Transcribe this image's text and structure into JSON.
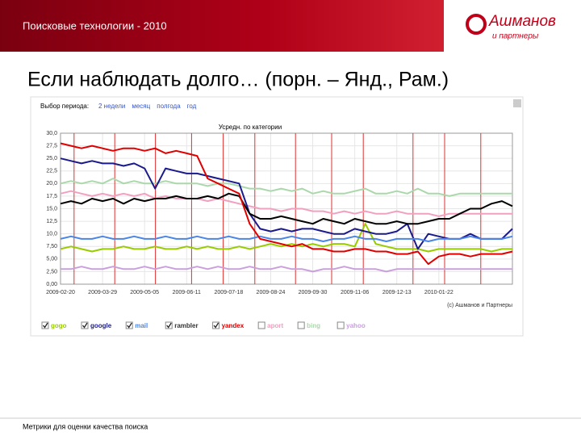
{
  "header": {
    "title": "Поисковые технологии - 2010",
    "logo_name": "Ашманов",
    "logo_sub": "и партнеры"
  },
  "slide": {
    "title": "Если наблюдать долго… (порн. – Янд., Рам.)"
  },
  "footer": "Метрики для оценки качества поиска",
  "chart_data": {
    "type": "line",
    "title": "Усредн. по категории",
    "period_label": "Выбор периода:",
    "period_options": [
      "2 недели",
      "месяц",
      "полгода",
      "год"
    ],
    "credit": "(c) Ашманов и Партнеры",
    "categories": [
      "2009-02-20",
      null,
      null,
      null,
      "2009-03-29",
      null,
      null,
      null,
      "2009-05-05",
      null,
      null,
      null,
      "2009-06-11",
      null,
      null,
      null,
      "2009-07-18",
      null,
      null,
      null,
      "2009-08-24",
      null,
      null,
      null,
      "2009-09-30",
      null,
      null,
      null,
      "2009-11-06",
      null,
      null,
      null,
      "2009-12-13",
      null,
      null,
      null,
      "2010-01-22",
      null,
      null,
      null,
      null,
      null,
      null,
      null
    ],
    "ylim": [
      0,
      30
    ],
    "yticks": [
      {
        "value": 0,
        "label": "0,00"
      },
      {
        "value": 2.5,
        "label": "2,50"
      },
      {
        "value": 5,
        "label": "5,00"
      },
      {
        "value": 7.5,
        "label": "7,50"
      },
      {
        "value": 10,
        "label": "10,0"
      },
      {
        "value": 12.5,
        "label": "12,5"
      },
      {
        "value": 15,
        "label": "15,0"
      },
      {
        "value": 17.5,
        "label": "17,5"
      },
      {
        "value": 20,
        "label": "20,0"
      },
      {
        "value": 22.5,
        "label": "22,5"
      },
      {
        "value": 25,
        "label": "25,0"
      },
      {
        "value": 27.5,
        "label": "27,5"
      },
      {
        "value": 30,
        "label": "30,0"
      }
    ],
    "grid": true,
    "series": [
      {
        "name": "gogo",
        "color": "#99cc00",
        "checked": true,
        "values": [
          7,
          7.5,
          7,
          6.5,
          7,
          7,
          7.5,
          7,
          7,
          7.5,
          7,
          7,
          7.5,
          7,
          7.5,
          7,
          7,
          7.5,
          7,
          7.5,
          8,
          7.5,
          8,
          7.5,
          8,
          7.5,
          8,
          8,
          7.5,
          12,
          8,
          7.5,
          7,
          7,
          7,
          6.5,
          7,
          7,
          7,
          7,
          7,
          6.5,
          7,
          7
        ]
      },
      {
        "name": "google",
        "color": "#1a1a8c",
        "checked": true,
        "values": [
          25,
          24.5,
          24,
          24.5,
          24,
          24,
          23.5,
          24,
          23,
          19,
          23,
          22.5,
          22,
          22,
          21.5,
          21,
          20.5,
          20,
          14,
          11,
          10.5,
          11,
          10.5,
          11,
          11,
          10.5,
          10,
          10,
          11,
          10.5,
          10,
          10,
          10.5,
          12,
          7,
          10,
          9.5,
          9,
          9,
          10,
          9,
          9,
          9,
          11
        ]
      },
      {
        "name": "mail",
        "color": "#4a86e8",
        "checked": true,
        "values": [
          9,
          9.5,
          9,
          9,
          9.5,
          9,
          9,
          9.5,
          9,
          9,
          9.5,
          9,
          9,
          9.5,
          9,
          9,
          9.5,
          9,
          9,
          9.5,
          9,
          9,
          9.5,
          9,
          9,
          8.5,
          9,
          9,
          9.5,
          9,
          9,
          8.5,
          9,
          9,
          9,
          8.5,
          9,
          9,
          9,
          9.5,
          9,
          9,
          9,
          9.5
        ]
      },
      {
        "name": "rambler",
        "color": "#000000",
        "checked": true,
        "values": [
          16,
          16.5,
          16,
          17,
          16.5,
          17,
          16,
          17,
          16.5,
          17,
          17,
          17.5,
          17,
          17,
          17.5,
          17,
          18,
          17.5,
          14,
          13,
          13,
          13.5,
          13,
          12.5,
          12,
          13,
          12.5,
          12,
          13,
          12.5,
          12,
          12,
          12.5,
          12,
          12,
          12.5,
          13,
          13,
          14,
          15,
          15,
          16,
          16.5,
          15.5
        ]
      },
      {
        "name": "yandex",
        "color": "#e00000",
        "checked": true,
        "values": [
          28,
          27.5,
          27,
          27.5,
          27,
          26.5,
          27,
          27,
          26.5,
          27,
          26,
          26.5,
          26,
          25.5,
          21,
          20,
          19,
          18,
          12,
          9,
          8.5,
          8,
          7.5,
          8,
          7,
          7,
          6.5,
          6.5,
          7,
          7,
          6.5,
          6.5,
          6,
          6,
          6.5,
          4,
          5.5,
          6,
          6,
          5.5,
          6,
          6,
          6,
          6.5
        ]
      },
      {
        "name": "aport",
        "color": "#f2a0c0",
        "checked": false,
        "values": [
          18,
          18.5,
          18,
          17.5,
          18,
          17.5,
          18,
          17.5,
          18,
          17,
          17.5,
          17,
          17,
          17,
          16.5,
          17,
          16.5,
          16,
          15.5,
          15,
          15,
          14.5,
          15,
          15,
          14.5,
          14.5,
          14,
          14.5,
          14,
          14.5,
          14,
          14,
          14.5,
          14,
          14,
          14,
          13.5,
          14,
          14,
          14,
          14,
          14,
          14,
          14
        ]
      },
      {
        "name": "bing",
        "color": "#aad8aa",
        "checked": false,
        "values": [
          20,
          20.5,
          20,
          20.5,
          20,
          21,
          20,
          20.5,
          20,
          20,
          20.5,
          20,
          20,
          20,
          19.5,
          20,
          20,
          19.5,
          19,
          19,
          18.5,
          19,
          18.5,
          19,
          18,
          18.5,
          18,
          18,
          18.5,
          19,
          18,
          18,
          18.5,
          18,
          19,
          18,
          18,
          17.5,
          18,
          18,
          18,
          18,
          18,
          18
        ]
      },
      {
        "name": "yahoo",
        "color": "#c9a0dc",
        "checked": false,
        "values": [
          3,
          3,
          3.5,
          3,
          3,
          3.5,
          3,
          3,
          3.5,
          3,
          3.5,
          3,
          3,
          3.5,
          3,
          3.5,
          3,
          3,
          3.5,
          3,
          3,
          3.5,
          3,
          3,
          2.5,
          3,
          3,
          3.5,
          3,
          3,
          3,
          2.5,
          3,
          3,
          3,
          3,
          3,
          3,
          3,
          3,
          3,
          3,
          3,
          3
        ]
      }
    ]
  }
}
